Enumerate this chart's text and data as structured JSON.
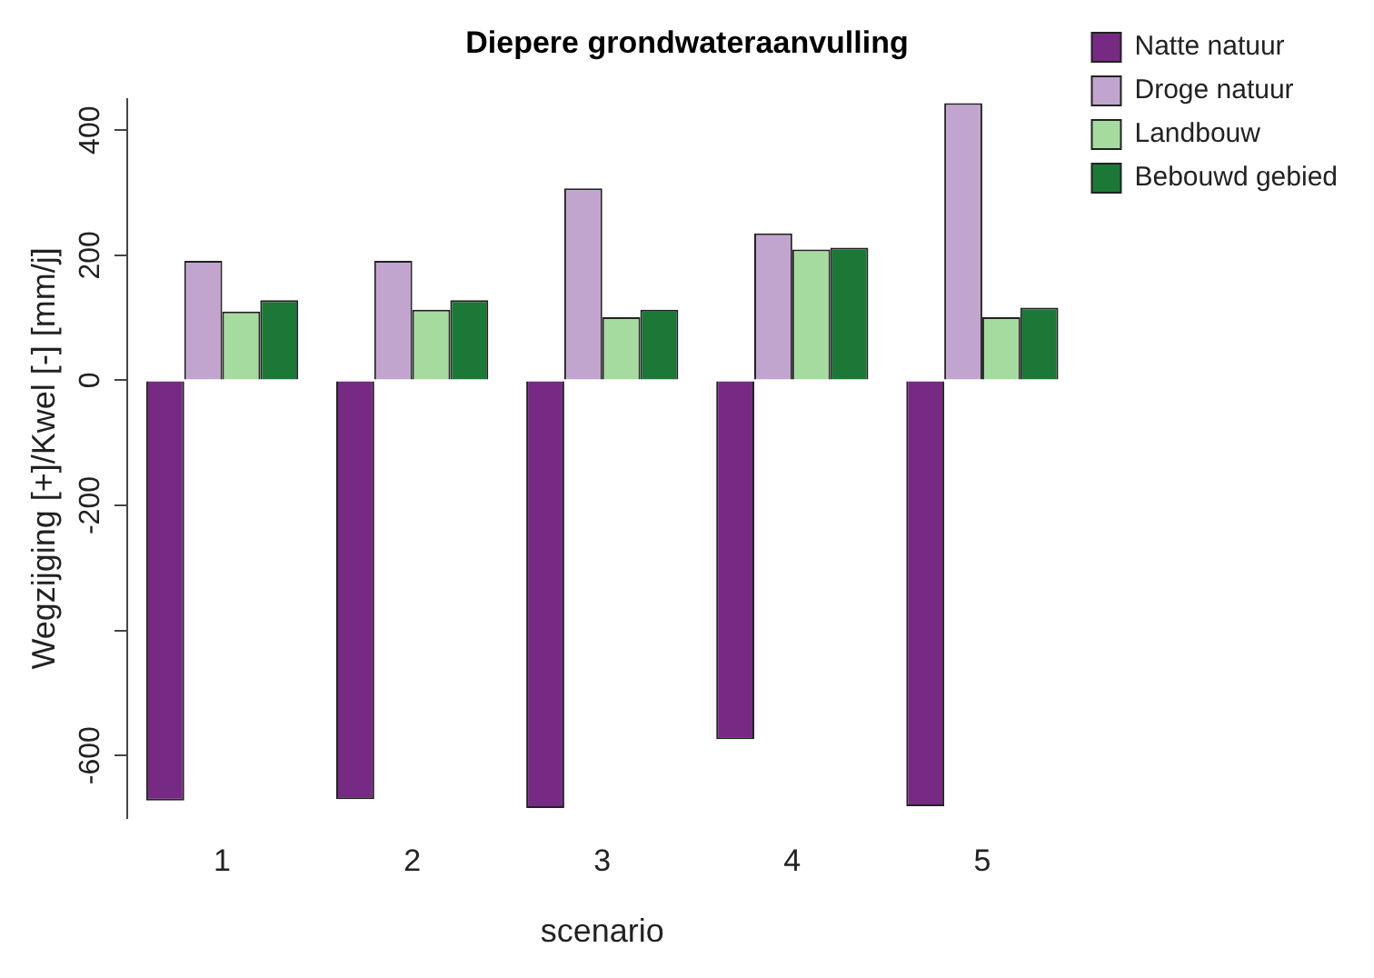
{
  "chart_data": {
    "type": "bar",
    "title": "Diepere grondwateraanvulling",
    "xlabel": "scenario",
    "ylabel": "Wegzijging [+]/Kwel [-] [mm/j]",
    "categories": [
      "1",
      "2",
      "3",
      "4",
      "5"
    ],
    "series": [
      {
        "name": "Natte natuur",
        "color": "#762a83",
        "values": [
          -672,
          -670,
          -684,
          -574,
          -681
        ]
      },
      {
        "name": "Droge natuur",
        "color": "#c2a5cf",
        "values": [
          191,
          191,
          307,
          235,
          443
        ]
      },
      {
        "name": "Landbouw",
        "color": "#a6dba0",
        "values": [
          110,
          113,
          101,
          209,
          101
        ]
      },
      {
        "name": "Bebouwd gebied",
        "color": "#1b7837",
        "values": [
          128,
          128,
          113,
          212,
          116
        ]
      }
    ],
    "ylim": [
      -700,
      450
    ],
    "yticks": [
      -600,
      {
        "value": -400,
        "label": null
      },
      -200,
      0,
      200,
      400
    ],
    "grid": false,
    "legend": "top right"
  }
}
